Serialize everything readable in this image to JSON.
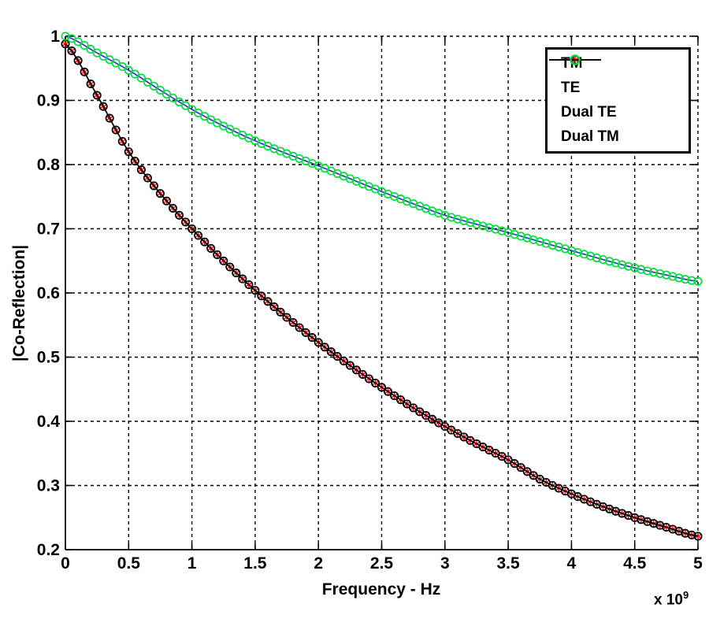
{
  "chart_data": {
    "type": "line",
    "title": "",
    "xlabel": "Frequency - Hz",
    "ylabel": "|Co-Reflection|",
    "x_multiplier": {
      "base": "x 10",
      "exponent": "9"
    },
    "xlim": [
      0,
      5
    ],
    "ylim": [
      0.2,
      1
    ],
    "xticks": {
      "values": [
        0,
        0.5,
        1,
        1.5,
        2,
        2.5,
        3,
        3.5,
        4,
        4.5,
        5
      ],
      "labels": [
        "0",
        "0.5",
        "1",
        "1.5",
        "2",
        "2.5",
        "3",
        "3.5",
        "4",
        "4.5",
        "5"
      ]
    },
    "yticks": {
      "values": [
        0.2,
        0.3,
        0.4,
        0.5,
        0.6,
        0.7,
        0.8,
        0.9,
        1
      ],
      "labels": [
        "0.2",
        "0.3",
        "0.4",
        "0.5",
        "0.6",
        "0.7",
        "0.8",
        "0.9",
        "1"
      ]
    },
    "grid": {
      "show": true,
      "style": "dashed",
      "color": "#000000"
    },
    "background": "#ffffff",
    "axes_color": "#000000",
    "x_step": 0.25,
    "x_anchor": [
      0,
      0.25,
      0.5,
      0.75,
      1,
      1.25,
      1.5,
      1.75,
      2,
      2.25,
      2.5,
      2.75,
      3,
      3.25,
      3.5,
      3.75,
      4,
      4.25,
      4.5,
      4.75,
      5
    ],
    "datasets": {
      "te": [
        0.988,
        0.908,
        0.82,
        0.755,
        0.7,
        0.65,
        0.604,
        0.562,
        0.523,
        0.487,
        0.453,
        0.421,
        0.392,
        0.365,
        0.34,
        0.31,
        0.287,
        0.267,
        0.25,
        0.235,
        0.221
      ],
      "tm": [
        1.0,
        0.974,
        0.947,
        0.916,
        0.886,
        0.86,
        0.837,
        0.817,
        0.798,
        0.778,
        0.758,
        0.739,
        0.721,
        0.707,
        0.694,
        0.68,
        0.666,
        0.652,
        0.639,
        0.628,
        0.618
      ]
    },
    "series": [
      {
        "name": "TM",
        "color": "#2b2bc8",
        "line": true,
        "marker": "none",
        "dataset": "tm"
      },
      {
        "name": "TE",
        "color": "#ee1111",
        "line": true,
        "marker": "asterisk",
        "dataset": "te"
      },
      {
        "name": "Dual TE",
        "color": "#000000",
        "line": true,
        "marker": "circle",
        "dataset": "te"
      },
      {
        "name": "Dual TM",
        "color": "#00dd3c",
        "line": false,
        "marker": "circle",
        "dataset": "tm"
      }
    ],
    "legend": {
      "position": "top-right"
    }
  }
}
